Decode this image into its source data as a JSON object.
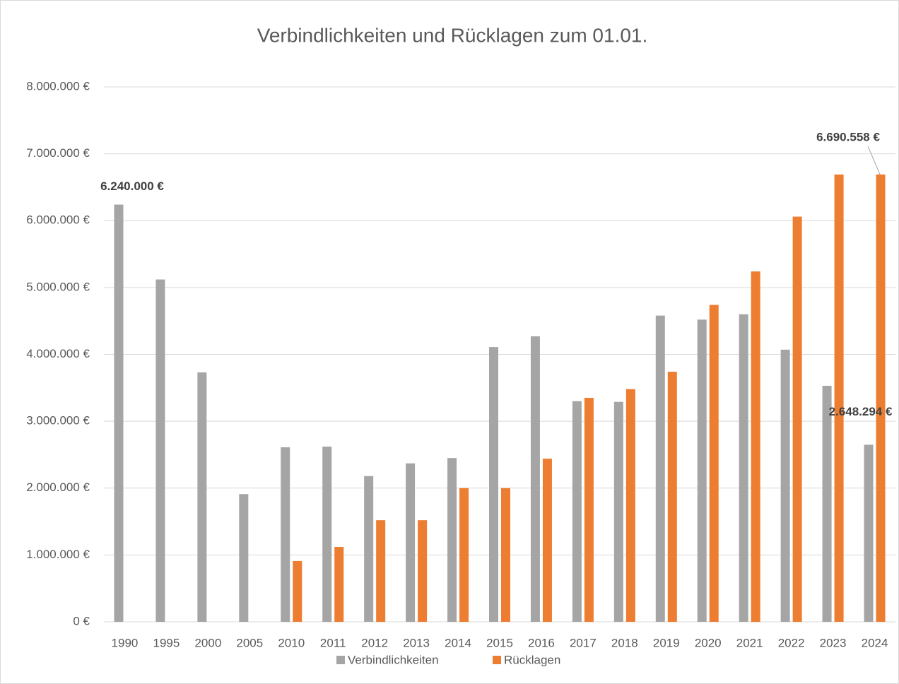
{
  "chart_data": {
    "type": "bar",
    "title": "Verbindlichkeiten und Rücklagen zum 01.01.",
    "categories": [
      "1990",
      "1995",
      "2000",
      "2005",
      "2010",
      "2011",
      "2012",
      "2013",
      "2014",
      "2015",
      "2016",
      "2017",
      "2018",
      "2019",
      "2020",
      "2021",
      "2022",
      "2023",
      "2024"
    ],
    "series": [
      {
        "name": "Verbindlichkeiten",
        "color": "#a5a5a5",
        "values": [
          6240000,
          5120000,
          3730000,
          1910000,
          2610000,
          2620000,
          2180000,
          2370000,
          2450000,
          4110000,
          4270000,
          3300000,
          3290000,
          4580000,
          4520000,
          4600000,
          4070000,
          3530000,
          2648294
        ],
        "value_labels": [
          "6.240.000 €",
          null,
          null,
          null,
          null,
          null,
          null,
          null,
          null,
          null,
          null,
          null,
          null,
          null,
          null,
          null,
          null,
          null,
          "2.648.294 €"
        ]
      },
      {
        "name": "Rücklagen",
        "color": "#ed7d31",
        "values": [
          null,
          null,
          null,
          null,
          910000,
          1120000,
          1520000,
          1520000,
          2000000,
          2000000,
          2440000,
          3350000,
          3480000,
          3740000,
          4740000,
          5240000,
          6060000,
          6690000,
          6690558
        ],
        "value_labels": [
          null,
          null,
          null,
          null,
          null,
          null,
          null,
          null,
          null,
          null,
          null,
          null,
          null,
          null,
          null,
          null,
          null,
          null,
          "6.690.558 €"
        ]
      }
    ],
    "ylim": [
      0,
      8000000
    ],
    "yticks": [
      {
        "value": 0,
        "label": "0 €"
      },
      {
        "value": 1000000,
        "label": "1.000.000 €"
      },
      {
        "value": 2000000,
        "label": "2.000.000 €"
      },
      {
        "value": 3000000,
        "label": "3.000.000 €"
      },
      {
        "value": 4000000,
        "label": "4.000.000 €"
      },
      {
        "value": 5000000,
        "label": "5.000.000 €"
      },
      {
        "value": 6000000,
        "label": "6.000.000 €"
      },
      {
        "value": 7000000,
        "label": "7.000.000 €"
      },
      {
        "value": 8000000,
        "label": "8.000.000 €"
      }
    ],
    "grid": true,
    "legend": "bottom"
  }
}
